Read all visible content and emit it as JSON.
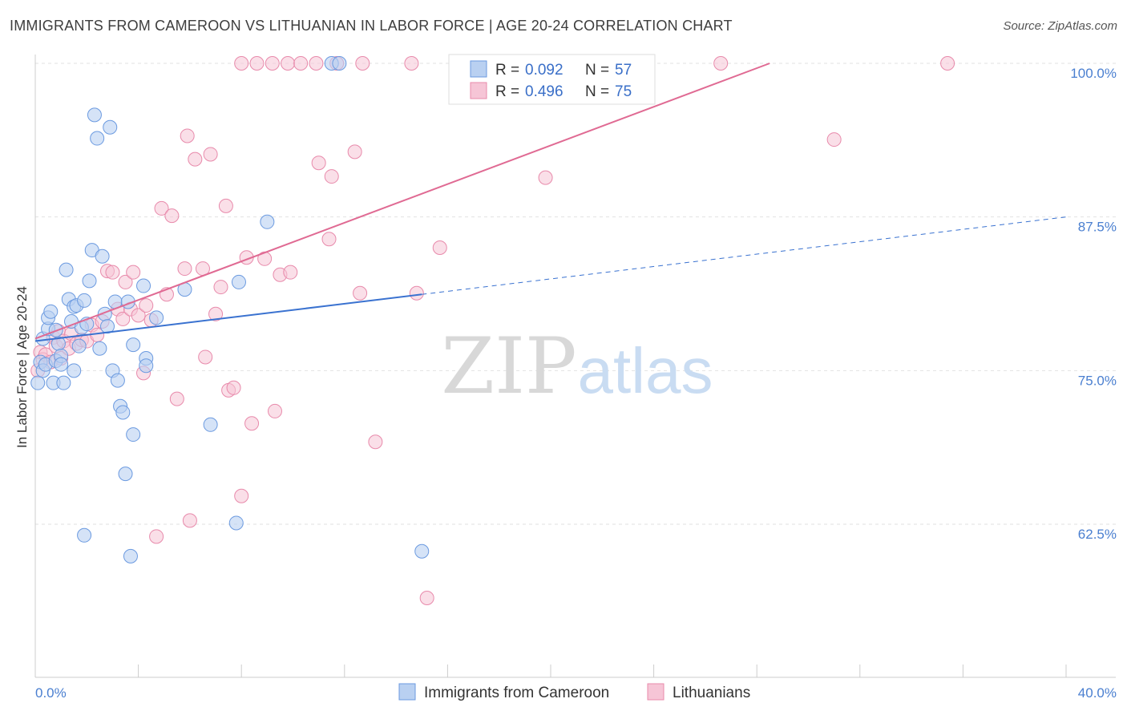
{
  "title": "IMMIGRANTS FROM CAMEROON VS LITHUANIAN IN LABOR FORCE | AGE 20-24 CORRELATION CHART",
  "source": "Source: ZipAtlas.com",
  "watermark": {
    "zip": "ZIP",
    "atlas": "atlas"
  },
  "colors": {
    "blue_fill": "#b9d0f1",
    "blue_stroke": "#6b9ae0",
    "blue_line": "#3a72d0",
    "pink_fill": "#f6c5d6",
    "pink_stroke": "#e88aab",
    "pink_line": "#e06a93",
    "tick_text": "#4a7fd0"
  },
  "legend_box": {
    "rows": [
      {
        "r_label": "R = ",
        "r_value": "0.092",
        "n_label": "N = ",
        "n_value": "57"
      },
      {
        "r_label": "R = ",
        "r_value": "0.496",
        "n_label": "N = ",
        "n_value": "75"
      }
    ]
  },
  "chart_data": {
    "type": "scatter",
    "title": "IMMIGRANTS FROM CAMEROON VS LITHUANIAN IN LABOR FORCE | AGE 20-24 CORRELATION CHART",
    "xlabel": "",
    "ylabel": "In Labor Force | Age 20-24",
    "xlim": [
      0,
      40
    ],
    "ylim": [
      50,
      101
    ],
    "x_tick_labels": [
      "0.0%",
      "40.0%"
    ],
    "y_ticks": [
      62.5,
      75.0,
      87.5,
      100.0
    ],
    "y_tick_labels": [
      "62.5%",
      "75.0%",
      "87.5%",
      "100.0%"
    ],
    "grid": "horizontal dashed",
    "legend_position": "bottom",
    "series": [
      {
        "name": "Immigrants from Cameroon",
        "color": "blue",
        "R": 0.092,
        "N": 57,
        "trend": {
          "x0": 0,
          "y0": 77.4,
          "x1": 15,
          "y1": 81.2,
          "dashed_to_x": 40,
          "dashed_to_y": 87.5
        },
        "points": [
          [
            0.1,
            74.0
          ],
          [
            0.2,
            75.7
          ],
          [
            0.3,
            75.0
          ],
          [
            0.3,
            77.6
          ],
          [
            0.4,
            75.5
          ],
          [
            0.5,
            78.4
          ],
          [
            0.5,
            79.3
          ],
          [
            0.6,
            79.8
          ],
          [
            0.7,
            74.0
          ],
          [
            0.8,
            75.8
          ],
          [
            0.8,
            78.3
          ],
          [
            0.9,
            77.2
          ],
          [
            1.0,
            76.2
          ],
          [
            1.0,
            75.5
          ],
          [
            1.1,
            74.0
          ],
          [
            1.2,
            83.2
          ],
          [
            1.3,
            80.8
          ],
          [
            1.4,
            79.0
          ],
          [
            1.5,
            80.2
          ],
          [
            1.5,
            75.0
          ],
          [
            1.6,
            80.3
          ],
          [
            1.7,
            77.0
          ],
          [
            1.8,
            78.5
          ],
          [
            1.9,
            80.7
          ],
          [
            2.0,
            78.8
          ],
          [
            2.1,
            82.3
          ],
          [
            2.2,
            84.8
          ],
          [
            2.3,
            95.8
          ],
          [
            2.4,
            93.9
          ],
          [
            2.5,
            76.8
          ],
          [
            2.6,
            84.3
          ],
          [
            2.7,
            79.6
          ],
          [
            2.8,
            78.6
          ],
          [
            2.9,
            94.8
          ],
          [
            3.0,
            75.0
          ],
          [
            3.1,
            80.6
          ],
          [
            3.2,
            74.2
          ],
          [
            3.3,
            72.1
          ],
          [
            3.4,
            71.6
          ],
          [
            3.5,
            66.6
          ],
          [
            3.6,
            80.6
          ],
          [
            3.7,
            59.9
          ],
          [
            3.8,
            69.8
          ],
          [
            3.8,
            77.1
          ],
          [
            4.2,
            81.9
          ],
          [
            4.3,
            76.0
          ],
          [
            4.3,
            75.4
          ],
          [
            4.7,
            79.3
          ],
          [
            5.8,
            81.6
          ],
          [
            6.8,
            70.6
          ],
          [
            7.8,
            62.6
          ],
          [
            7.9,
            82.2
          ],
          [
            9.0,
            87.1
          ],
          [
            11.5,
            100.0
          ],
          [
            11.8,
            100.0
          ],
          [
            15.0,
            60.3
          ],
          [
            1.9,
            61.6
          ]
        ]
      },
      {
        "name": "Lithuanians",
        "color": "pink",
        "R": 0.496,
        "N": 75,
        "trend": {
          "x0": 0,
          "y0": 77.6,
          "x1": 28.5,
          "y1": 100.0
        },
        "points": [
          [
            0.1,
            75.0
          ],
          [
            0.2,
            76.5
          ],
          [
            0.3,
            75.9
          ],
          [
            0.4,
            76.3
          ],
          [
            0.6,
            75.7
          ],
          [
            0.7,
            77.7
          ],
          [
            0.8,
            77.0
          ],
          [
            0.9,
            78.2
          ],
          [
            1.0,
            76.0
          ],
          [
            1.1,
            77.4
          ],
          [
            1.3,
            76.8
          ],
          [
            1.4,
            78.0
          ],
          [
            1.6,
            77.2
          ],
          [
            1.8,
            77.5
          ],
          [
            2.0,
            77.4
          ],
          [
            2.2,
            78.7
          ],
          [
            2.4,
            77.9
          ],
          [
            2.6,
            79.0
          ],
          [
            2.8,
            83.1
          ],
          [
            3.0,
            83.0
          ],
          [
            3.2,
            80.0
          ],
          [
            3.4,
            79.2
          ],
          [
            3.5,
            82.2
          ],
          [
            3.7,
            80.0
          ],
          [
            3.8,
            83.0
          ],
          [
            4.0,
            79.5
          ],
          [
            4.2,
            74.8
          ],
          [
            4.3,
            80.3
          ],
          [
            4.5,
            79.1
          ],
          [
            4.9,
            88.2
          ],
          [
            5.1,
            81.2
          ],
          [
            5.3,
            87.6
          ],
          [
            5.5,
            72.7
          ],
          [
            5.8,
            83.3
          ],
          [
            5.9,
            94.1
          ],
          [
            6.0,
            62.8
          ],
          [
            6.2,
            92.2
          ],
          [
            6.5,
            83.3
          ],
          [
            6.6,
            76.1
          ],
          [
            6.8,
            92.6
          ],
          [
            7.0,
            79.6
          ],
          [
            7.2,
            81.8
          ],
          [
            7.4,
            88.4
          ],
          [
            7.5,
            73.4
          ],
          [
            7.7,
            73.6
          ],
          [
            8.0,
            64.8
          ],
          [
            8.2,
            84.2
          ],
          [
            8.4,
            70.7
          ],
          [
            8.9,
            84.1
          ],
          [
            9.3,
            71.7
          ],
          [
            9.5,
            82.8
          ],
          [
            9.9,
            83.0
          ],
          [
            11.0,
            91.9
          ],
          [
            11.4,
            85.7
          ],
          [
            11.5,
            90.8
          ],
          [
            12.4,
            92.8
          ],
          [
            12.6,
            81.3
          ],
          [
            13.2,
            69.2
          ],
          [
            14.8,
            81.3
          ],
          [
            15.2,
            56.5
          ],
          [
            15.7,
            85.0
          ],
          [
            19.8,
            90.7
          ],
          [
            8.0,
            100.0
          ],
          [
            8.6,
            100.0
          ],
          [
            9.2,
            100.0
          ],
          [
            9.8,
            100.0
          ],
          [
            10.3,
            100.0
          ],
          [
            10.9,
            100.0
          ],
          [
            11.7,
            100.0
          ],
          [
            12.7,
            100.0
          ],
          [
            14.6,
            100.0
          ],
          [
            26.6,
            100.0
          ],
          [
            31.0,
            93.8
          ],
          [
            35.4,
            100.0
          ],
          [
            4.7,
            61.5
          ]
        ]
      }
    ]
  }
}
